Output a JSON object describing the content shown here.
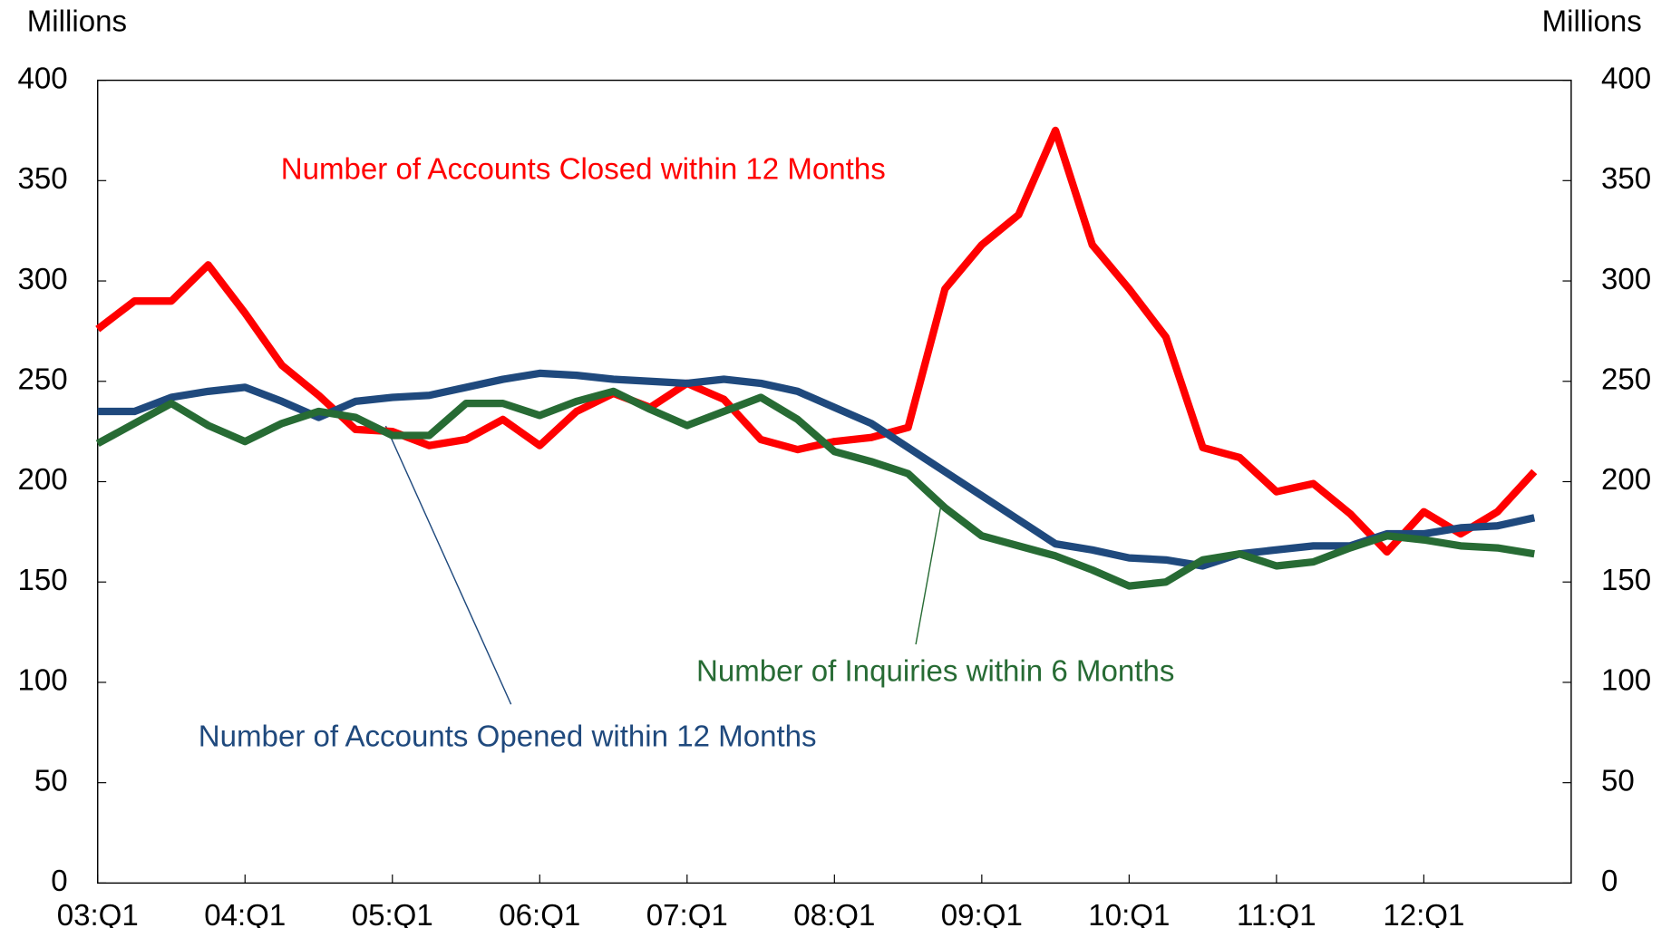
{
  "chart_data": {
    "type": "line",
    "y_label": "Millions",
    "y2_label": "Millions",
    "categories": [
      "03:Q1",
      null,
      null,
      null,
      "04:Q1",
      null,
      null,
      null,
      "05:Q1",
      null,
      null,
      null,
      "06:Q1",
      null,
      null,
      null,
      "07:Q1",
      null,
      null,
      null,
      "08:Q1",
      null,
      null,
      null,
      "09:Q1",
      null,
      null,
      null,
      "10:Q1",
      null,
      null,
      null,
      "11:Q1",
      null,
      null,
      null,
      "12:Q1",
      null,
      null,
      null
    ],
    "series": [
      {
        "name": "Number of Accounts Closed within 12 Months",
        "color": "#ff0000",
        "values": [
          276,
          290,
          290,
          308,
          284,
          258,
          243,
          226,
          225,
          218,
          221,
          231,
          218,
          235,
          244,
          237,
          249,
          241,
          221,
          216,
          220,
          222,
          227,
          296,
          318,
          333,
          375,
          318,
          296,
          272,
          217,
          212,
          195,
          199,
          184,
          165,
          185,
          174,
          185,
          205
        ]
      },
      {
        "name": "Number of Accounts Opened within 12 Months",
        "color": "#1f497d",
        "values": [
          235,
          235,
          242,
          245,
          247,
          240,
          232,
          240,
          242,
          243,
          247,
          251,
          254,
          253,
          251,
          250,
          249,
          251,
          249,
          245,
          237,
          229,
          217,
          205,
          193,
          181,
          169,
          166,
          162,
          161,
          158,
          164,
          166,
          168,
          168,
          174,
          174,
          177,
          178,
          182
        ]
      },
      {
        "name": "Number of Inquiries within 6 Months",
        "color": "#276b34",
        "values": [
          219,
          229,
          239,
          228,
          220,
          229,
          235,
          232,
          223,
          223,
          239,
          239,
          233,
          240,
          245,
          236,
          228,
          235,
          242,
          231,
          215,
          210,
          204,
          187,
          173,
          168,
          163,
          156,
          148,
          150,
          161,
          164,
          158,
          160,
          167,
          173,
          171,
          168,
          167,
          164
        ]
      }
    ],
    "ylim": [
      0,
      400
    ],
    "yticks": [
      0,
      50,
      100,
      150,
      200,
      250,
      300,
      350,
      400
    ],
    "y2lim": [
      0,
      400
    ],
    "y2ticks": [
      0,
      50,
      100,
      150,
      200,
      250,
      300,
      350,
      400
    ],
    "grid": false
  }
}
